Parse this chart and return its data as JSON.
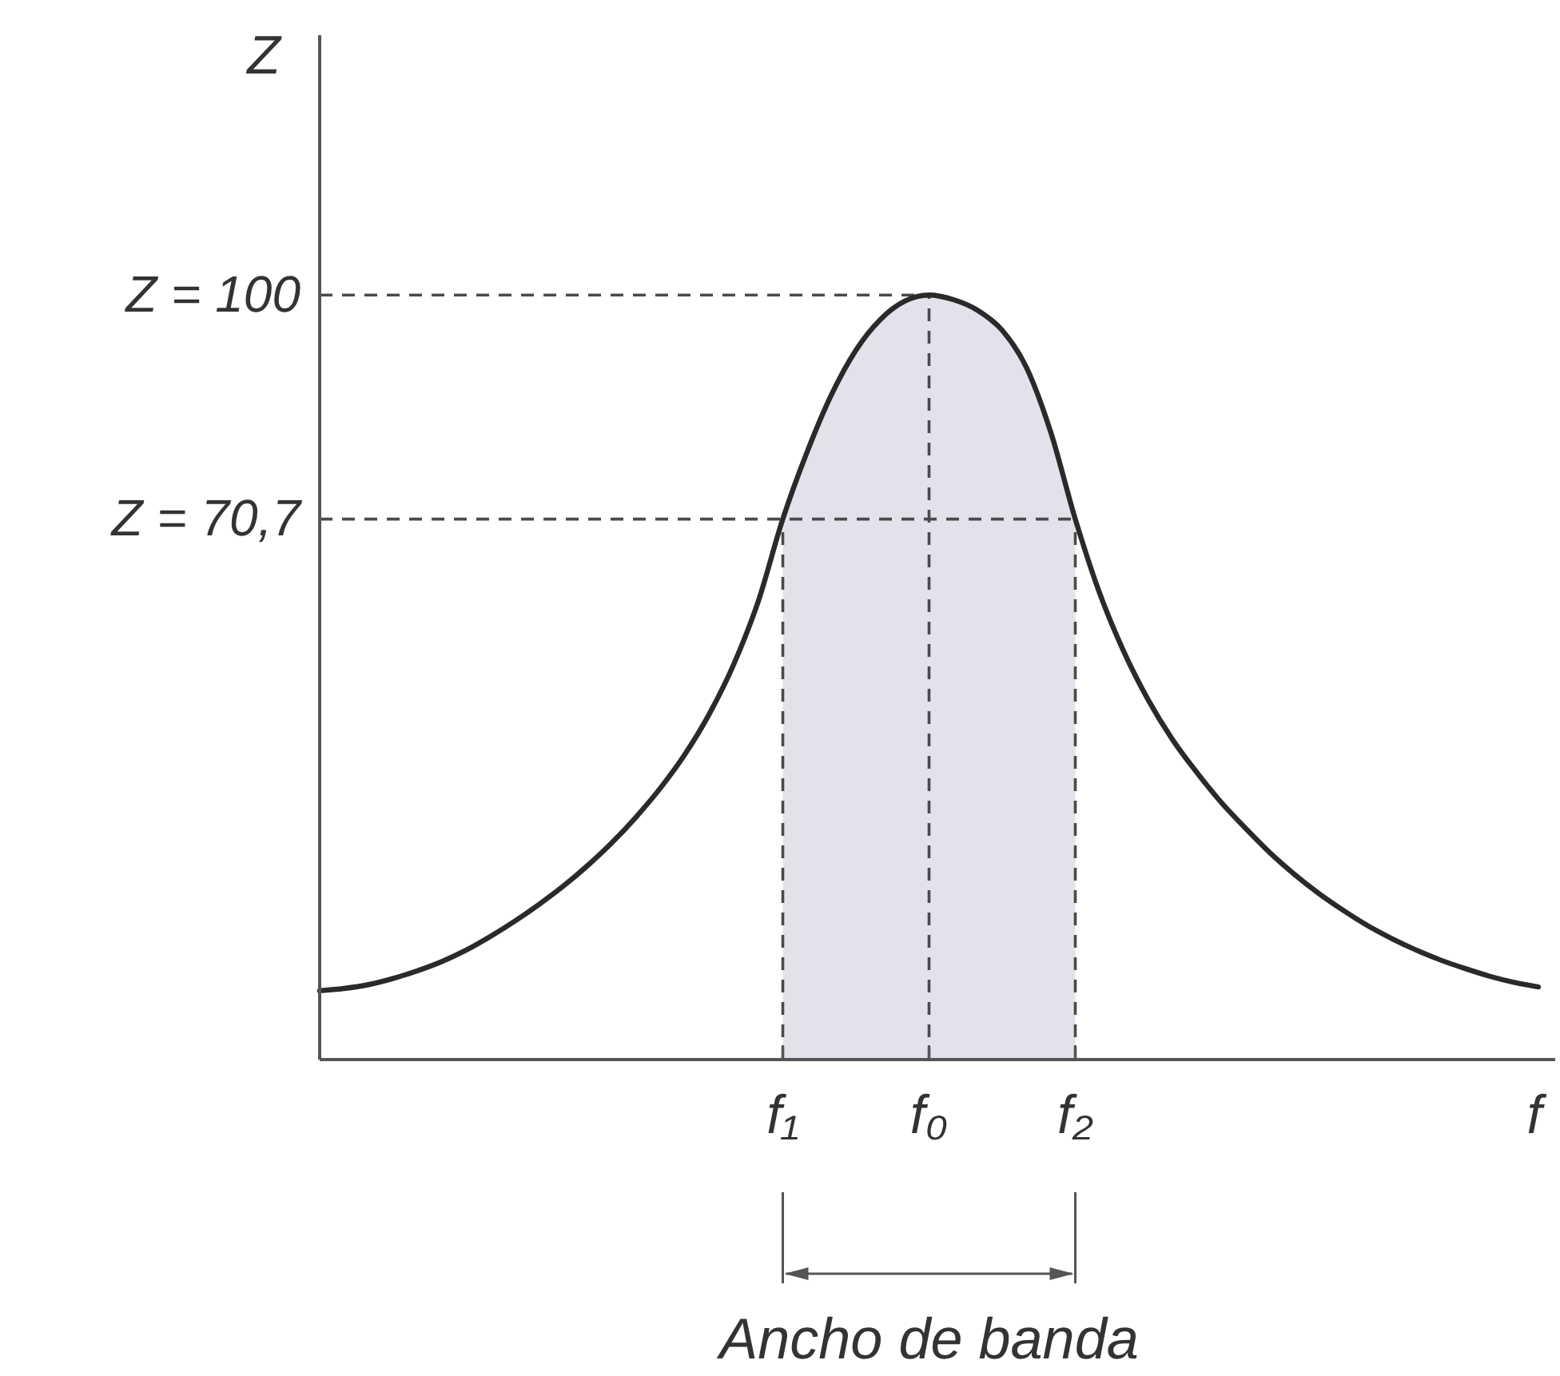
{
  "chart_data": {
    "type": "line",
    "categories": [
      null,
      null,
      null,
      null,
      null,
      null,
      null,
      null,
      null,
      null,
      null,
      null,
      null,
      null,
      null,
      null,
      null,
      null,
      null,
      "f₁",
      null,
      null,
      null,
      null,
      null,
      "f₀",
      null,
      null,
      null,
      null,
      null,
      "f₂",
      null,
      null,
      null,
      null,
      null,
      null,
      null,
      null,
      null,
      null,
      null,
      null,
      null,
      null,
      null,
      null,
      null,
      null,
      null
    ],
    "series": [
      {
        "type": "area",
        "color": "#e2e2ea",
        "values": [
          null,
          null,
          null,
          null,
          null,
          null,
          null,
          null,
          null,
          null,
          null,
          null,
          null,
          null,
          null,
          null,
          null,
          null,
          null,
          70.7,
          79.5,
          87.0,
          92.8,
          96.8,
          99.2,
          100,
          99.4,
          98.0,
          95.4,
          90.5,
          82.0,
          70.7,
          null,
          null,
          null,
          null,
          null,
          null,
          null,
          null,
          null,
          null,
          null,
          null,
          null,
          null,
          null,
          null,
          null,
          null,
          null
        ]
      },
      {
        "color": "#2a2a2a",
        "values": [
          9.0,
          9.3,
          9.8,
          10.6,
          11.6,
          12.8,
          14.3,
          16.1,
          18.1,
          20.3,
          22.7,
          25.4,
          28.4,
          31.8,
          35.6,
          40.0,
          45.3,
          51.8,
          60.0,
          70.7,
          79.5,
          87.0,
          92.8,
          96.8,
          99.2,
          100,
          99.4,
          98.0,
          95.4,
          90.5,
          82.0,
          70.7,
          61.0,
          53.3,
          47.0,
          41.8,
          37.5,
          33.6,
          30.2,
          27.0,
          24.2,
          21.7,
          19.5,
          17.5,
          15.8,
          14.3,
          13.0,
          11.9,
          10.9,
          10.1,
          9.5
        ]
      }
    ],
    "ylim": [
      0,
      134
    ],
    "yticks": [
      {
        "value": 70.7,
        "label": "Z = 70,7"
      },
      {
        "value": 100,
        "label": "Z = 100"
      }
    ],
    "xlabel": "f",
    "ylabel": "Z",
    "ref_lines": [
      {
        "axis": "y",
        "value": 100,
        "line_style": "dashed",
        "color": "#4a4a4a"
      },
      {
        "axis": "y",
        "value": 70.7,
        "line_style": "dashed",
        "color": "#4a4a4a"
      },
      {
        "axis": "x",
        "value": "f₁",
        "line_style": "dashed",
        "color": "#4a4a4a"
      },
      {
        "axis": "x",
        "value": "f₀",
        "line_style": "dashed",
        "color": "#4a4a4a"
      },
      {
        "axis": "x",
        "value": "f₂",
        "line_style": "dashed",
        "color": "#4a4a4a"
      }
    ],
    "annotations": [
      "Ancho de banda"
    ]
  }
}
